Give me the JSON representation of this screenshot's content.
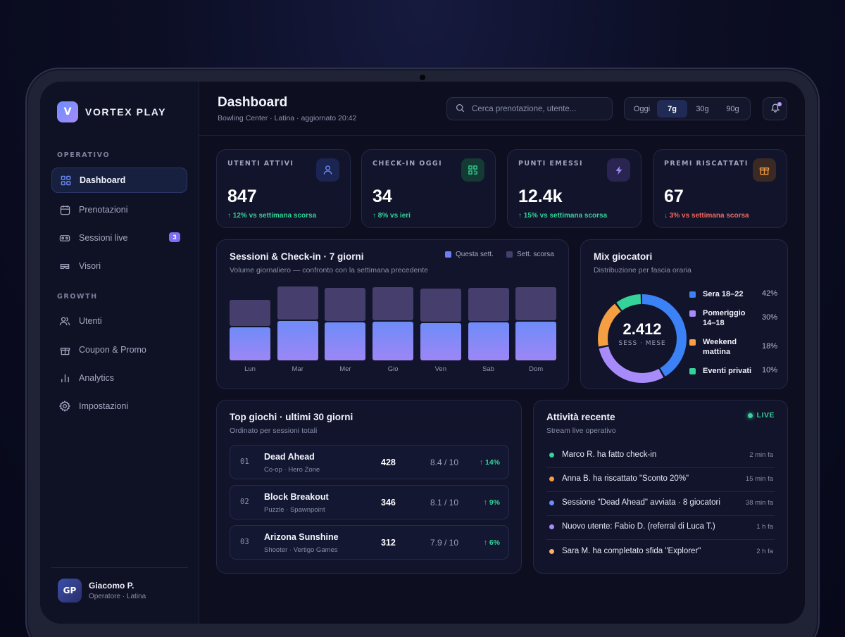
{
  "brand": {
    "logo_letter": "V",
    "name": "VORTEX PLAY"
  },
  "sidebar": {
    "sections": [
      {
        "label": "OPERATIVO"
      },
      {
        "label": "GROWTH"
      }
    ],
    "items": [
      {
        "label": "Dashboard",
        "icon": "grid-icon"
      },
      {
        "label": "Prenotazioni",
        "icon": "calendar-icon"
      },
      {
        "label": "Sessioni live",
        "icon": "headset-icon",
        "badge": "3"
      },
      {
        "label": "Visori",
        "icon": "vr-visor-icon"
      },
      {
        "label": "Utenti",
        "icon": "users-icon"
      },
      {
        "label": "Coupon & Promo",
        "icon": "gift-icon"
      },
      {
        "label": "Analytics",
        "icon": "bar-chart-icon"
      },
      {
        "label": "Impostazioni",
        "icon": "gear-icon"
      }
    ],
    "user": {
      "initials": "GP",
      "name": "Giacomo P.",
      "role": "Operatore · Latina"
    }
  },
  "header": {
    "title": "Dashboard",
    "subtitle": "Bowling Center · Latina · aggiornato 20:42",
    "search_placeholder": "Cerca prenotazione, utente...",
    "ranges": [
      "Oggi",
      "7g",
      "30g",
      "90g"
    ],
    "active_range": "7g"
  },
  "kpis": [
    {
      "label": "UTENTI ATTIVI",
      "value": "847",
      "delta": "↑ 12% vs settimana scorsa",
      "trend": "up",
      "icon": "user-icon",
      "color": "#6b8cff"
    },
    {
      "label": "CHECK-IN OGGI",
      "value": "34",
      "delta": "↑ 8% vs ieri",
      "trend": "up",
      "icon": "qr-code-icon",
      "color": "#34d399"
    },
    {
      "label": "PUNTI EMESSI",
      "value": "12.4k",
      "delta": "↑ 15% vs settimana scorsa",
      "trend": "up",
      "icon": "lightning-icon",
      "color": "#a78bfa"
    },
    {
      "label": "PREMI RISCATTATI",
      "value": "67",
      "delta": "↓ 3% vs settimana scorsa",
      "trend": "down",
      "icon": "gift-icon",
      "color": "#f59e42"
    }
  ],
  "sessions_chart": {
    "title": "Sessioni & Check-in · 7 giorni",
    "subtitle": "Volume giornaliero — confronto con la settimana precedente"
  },
  "chart_data": {
    "type": "bar",
    "categories": [
      "Lun",
      "Mar",
      "Mer",
      "Gio",
      "Ven",
      "Sab",
      "Dom"
    ],
    "series": [
      {
        "name": "Questa sett.",
        "values": [
          47,
          56,
          54,
          55,
          53,
          54,
          55
        ],
        "color": "#7f8af7"
      },
      {
        "name": "Sett. scorsa",
        "values": [
          37,
          47,
          47,
          47,
          47,
          47,
          47
        ],
        "color": "#463e6c"
      }
    ],
    "legend": "top-right",
    "grid": false
  },
  "mix": {
    "title": "Mix giocatori",
    "subtitle": "Distribuzione per fascia oraria",
    "center_value": "2.412",
    "center_label": "SESS · MESE",
    "segments": [
      {
        "name": "Sera 18–22",
        "pct": "42%",
        "value": 42,
        "color": "#3b82f6"
      },
      {
        "name": "Pomeriggio 14–18",
        "pct": "30%",
        "value": 30,
        "color": "#a78bfa"
      },
      {
        "name": "Weekend mattina",
        "pct": "18%",
        "value": 18,
        "color": "#f59e42"
      },
      {
        "name": "Eventi privati",
        "pct": "10%",
        "value": 10,
        "color": "#34d399"
      }
    ]
  },
  "top_games": {
    "title": "Top giochi · ultimi 30 giorni",
    "subtitle": "Ordinato per sessioni totali",
    "rows": [
      {
        "rank": "01",
        "name": "Dead Ahead",
        "meta": "Co-op · Hero Zone",
        "sessions": "428",
        "rating": "8.4 / 10",
        "delta": "↑ 14%"
      },
      {
        "rank": "02",
        "name": "Block Breakout",
        "meta": "Puzzle · Spawnpoint",
        "sessions": "346",
        "rating": "8.1 / 10",
        "delta": "↑ 9%"
      },
      {
        "rank": "03",
        "name": "Arizona Sunshine",
        "meta": "Shooter · Vertigo Games",
        "sessions": "312",
        "rating": "7.9 / 10",
        "delta": "↑ 6%"
      }
    ]
  },
  "activity": {
    "title": "Attività recente",
    "subtitle": "Stream live operativo",
    "live_label": "LIVE",
    "rows": [
      {
        "text": "Marco R. ha fatto check-in",
        "time": "2 min fa",
        "color": "#34d399"
      },
      {
        "text": "Anna B. ha riscattato \"Sconto 20%\"",
        "time": "15 min fa",
        "color": "#f59e42"
      },
      {
        "text": "Sessione \"Dead Ahead\" avviata · 8 giocatori",
        "time": "38 min fa",
        "color": "#6b8cff"
      },
      {
        "text": "Nuovo utente: Fabio D. (referral di Luca T.)",
        "time": "1 h fa",
        "color": "#a78bfa"
      },
      {
        "text": "Sara M. ha completato sfida \"Explorer\"",
        "time": "2 h fa",
        "color": "#f7b267"
      }
    ]
  }
}
